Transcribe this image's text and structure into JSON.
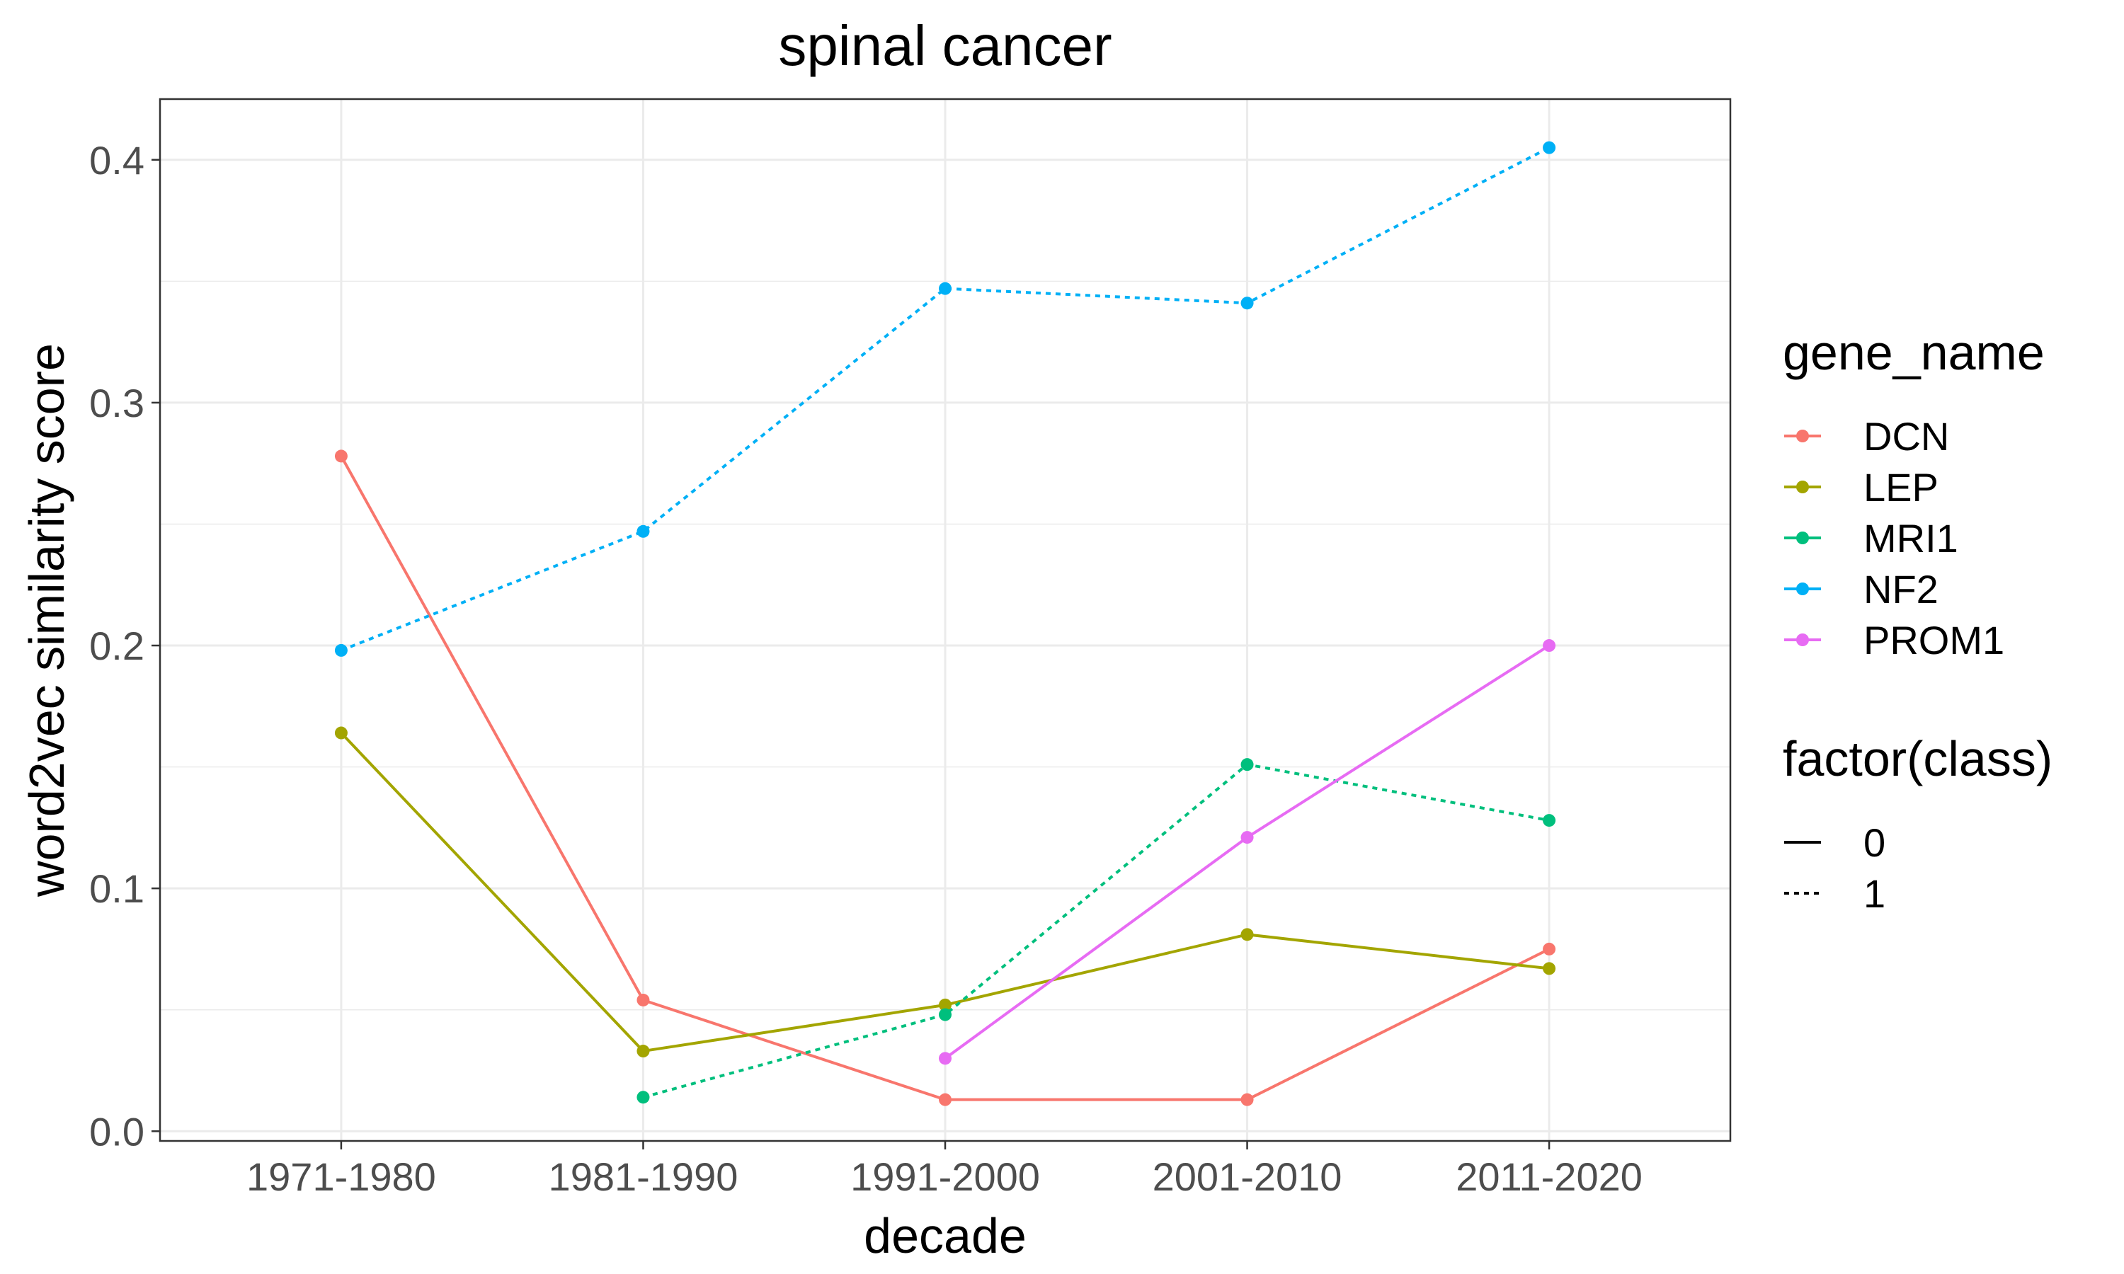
{
  "chart_data": {
    "type": "line",
    "title": "spinal cancer",
    "xlabel": "decade",
    "ylabel": "word2vec similarity score",
    "categories": [
      "1971-1980",
      "1981-1990",
      "1991-2000",
      "2001-2010",
      "2011-2020"
    ],
    "ylim": [
      -0.004,
      0.425
    ],
    "yticks": [
      "0.0",
      "0.1",
      "0.2",
      "0.3",
      "0.4"
    ],
    "ytick_values": [
      0.0,
      0.1,
      0.2,
      0.3,
      0.4
    ],
    "grid": true,
    "legend_placement": "right",
    "series": [
      {
        "name": "DCN",
        "color": "#F8766D",
        "class": "0",
        "values": [
          0.278,
          0.054,
          0.013,
          0.013,
          0.075
        ]
      },
      {
        "name": "LEP",
        "color": "#A3A500",
        "class": "0",
        "values": [
          0.164,
          0.033,
          0.052,
          0.081,
          0.067
        ]
      },
      {
        "name": "MRI1",
        "color": "#00BF7D",
        "class": "1",
        "values": [
          null,
          0.014,
          0.048,
          0.151,
          0.128
        ]
      },
      {
        "name": "NF2",
        "color": "#00B0F6",
        "class": "1",
        "values": [
          0.198,
          0.247,
          0.347,
          0.341,
          0.405
        ]
      },
      {
        "name": "PROM1",
        "color": "#E76BF3",
        "class": "0",
        "values": [
          null,
          null,
          0.03,
          0.121,
          0.2
        ]
      }
    ],
    "legend": {
      "color_title": "gene_name",
      "linetype_title": "factor(class)",
      "linetypes": [
        {
          "label": "0",
          "style": "solid"
        },
        {
          "label": "1",
          "style": "dotted"
        }
      ]
    }
  }
}
